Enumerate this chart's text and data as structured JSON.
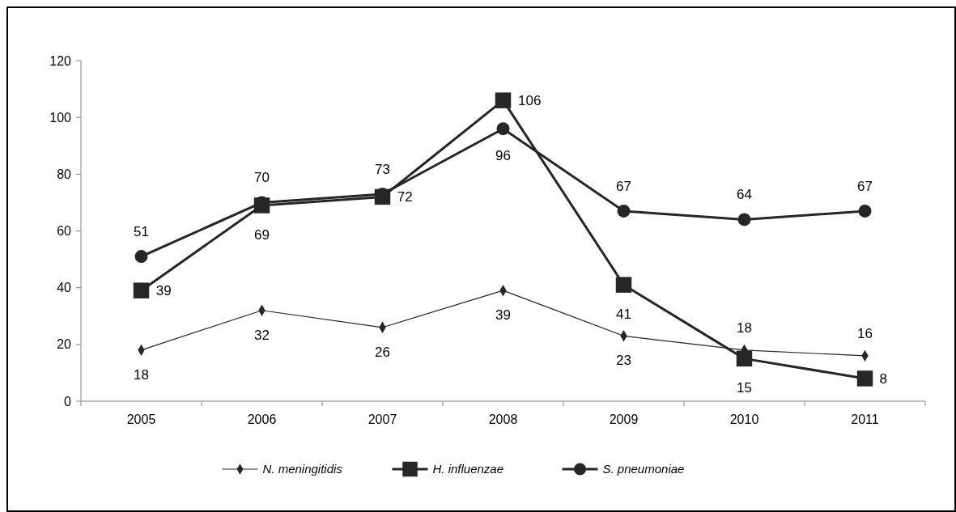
{
  "chart_data": {
    "type": "line",
    "categories": [
      "2005",
      "2006",
      "2007",
      "2008",
      "2009",
      "2010",
      "2011"
    ],
    "series": [
      {
        "name": "N. meningitidis",
        "color": "#262626",
        "marker": "diamond",
        "values": [
          18,
          32,
          26,
          39,
          23,
          18,
          16
        ]
      },
      {
        "name": "H. influenzae",
        "color": "#262626",
        "marker": "square",
        "values": [
          39,
          69,
          72,
          106,
          41,
          15,
          8
        ]
      },
      {
        "name": "S. pneumoniae",
        "color": "#262626",
        "marker": "circle",
        "values": [
          51,
          70,
          73,
          96,
          67,
          64,
          67
        ]
      }
    ],
    "ylim": [
      0,
      120
    ],
    "yticks": [
      0,
      20,
      40,
      60,
      80,
      100,
      120
    ],
    "grid": false,
    "legend": "bottom",
    "data_labels": true,
    "line_style": "solid"
  }
}
